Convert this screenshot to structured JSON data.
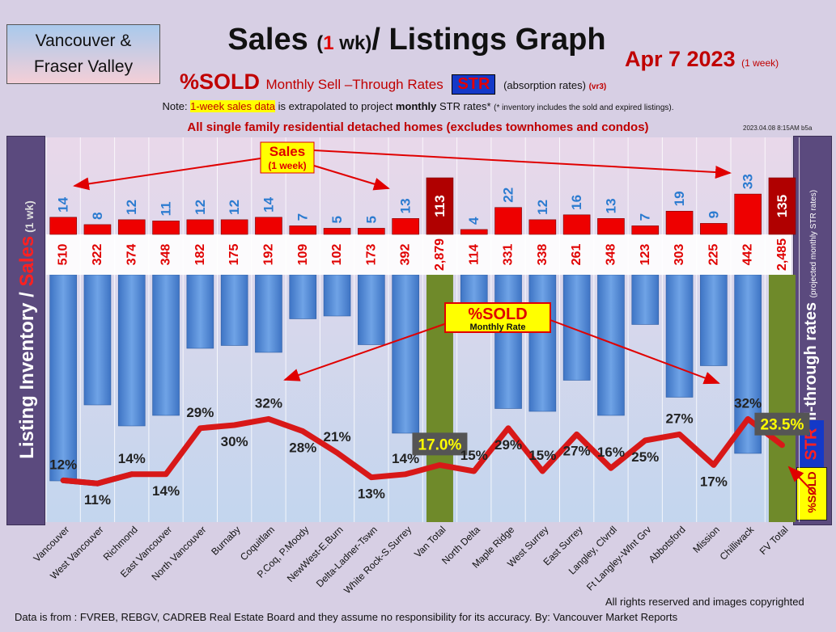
{
  "header": {
    "region_line1": "Vancouver &",
    "region_line2": "Fraser Valley",
    "title_a": "Sales ",
    "title_b": "(",
    "title_c": "1",
    "title_d": " wk)",
    "title_e": "/ Listings Graph",
    "date": "Apr 7  2023 ",
    "date_small": "(1 week)",
    "sub_pct": "%SOLD ",
    "sub_text": "Monthly Sell –Through Rates ",
    "sub_str": "STR",
    "sub_abs": " (absorption rates) ",
    "sub_vr": "(vr3)",
    "note_a": "Note: ",
    "note_hl": "1-week sales data",
    "note_b": " is extrapolated to project ",
    "note_bold": "monthly",
    "note_c": " STR rates* ",
    "note_tiny": "(* inventory includes the sold and expired listings).",
    "scope": "All single family residential detached homes (excludes townhomes and condos)",
    "stamp": "2023.04.08 8:15AM b5a"
  },
  "side": {
    "left_a": "Listing Inventory ",
    "left_slash": "/ ",
    "left_sales": "Sales",
    "left_small": " (1 wk)",
    "right_a": "Sell-through rates ",
    "right_small": "(projected monthly STR rates)",
    "badge_str": "STR",
    "badge_sold": "%SOLD"
  },
  "callouts": {
    "sales_a": "Sales",
    "sales_b": "(1 week)",
    "sold_a": "%SOLD",
    "sold_b": "Monthly Rate"
  },
  "footer": {
    "rights": "All rights reserved and  images copyrighted",
    "source": "Data is from : FVREB, REBGV, CADREB Real Estate Board and they assume no responsibility for its accuracy. By: Vancouver Market Reports"
  },
  "colors": {
    "sales_bar": "#ee0000",
    "inventory_bar": "#4f87d2",
    "total_bar": "#6f8a2a",
    "total_sales_bar": "#b00000",
    "str_line": "#d81818",
    "str_line_dark": "#5a2a55"
  },
  "chart_data": {
    "type": "bar",
    "categories": [
      "Vancouver",
      "West Vancouver",
      "Richmond",
      "East Vancouver",
      "North Vancouver",
      "Burnaby",
      "Coquitlam",
      "P.Coq, P.Moody",
      "NewWest-E.Burn",
      "Delta-Ladner-Tswn",
      "White Rock-S.Surrey",
      "Van Total",
      "North Delta",
      "Maple Ridge",
      "West Surrey",
      "East Surrey",
      "Langley, Clvrdl",
      "Ft Langley-Wlnt Grv",
      "Abbotsford",
      "Mission",
      "Chilliwack",
      "FV Total"
    ],
    "series": [
      {
        "name": "Sales",
        "values": [
          14,
          8,
          12,
          11,
          12,
          12,
          14,
          7,
          5,
          5,
          13,
          113,
          4,
          22,
          12,
          16,
          13,
          7,
          19,
          9,
          33,
          135
        ]
      },
      {
        "name": "Listing Inventory",
        "values": [
          510,
          322,
          374,
          348,
          182,
          175,
          192,
          109,
          102,
          173,
          392,
          2879,
          114,
          331,
          338,
          261,
          348,
          123,
          303,
          225,
          442,
          2485
        ]
      },
      {
        "name": "%SOLD",
        "values": [
          12,
          11,
          14,
          14,
          29,
          30,
          32,
          28,
          21,
          13,
          14,
          17.0,
          15,
          29,
          15,
          27,
          16,
          25,
          27,
          17,
          32,
          23.5
        ]
      }
    ],
    "str_labels": [
      "12%",
      "11%",
      "14%",
      "14%",
      "29%",
      "30%",
      "32%",
      "28%",
      "21%",
      "13%",
      "14%",
      "17.0%",
      "15%",
      "29%",
      "15%",
      "27%",
      "16%",
      "25%",
      "27%",
      "17%",
      "32%",
      "23.5%"
    ],
    "inventory_labels": [
      "510",
      "322",
      "374",
      "348",
      "182",
      "175",
      "192",
      "109",
      "102",
      "173",
      "392",
      "2,879",
      "114",
      "331",
      "338",
      "261",
      "348",
      "123",
      "303",
      "225",
      "442",
      "2,485"
    ],
    "totals": [
      "Van Total",
      "FV Total"
    ]
  }
}
